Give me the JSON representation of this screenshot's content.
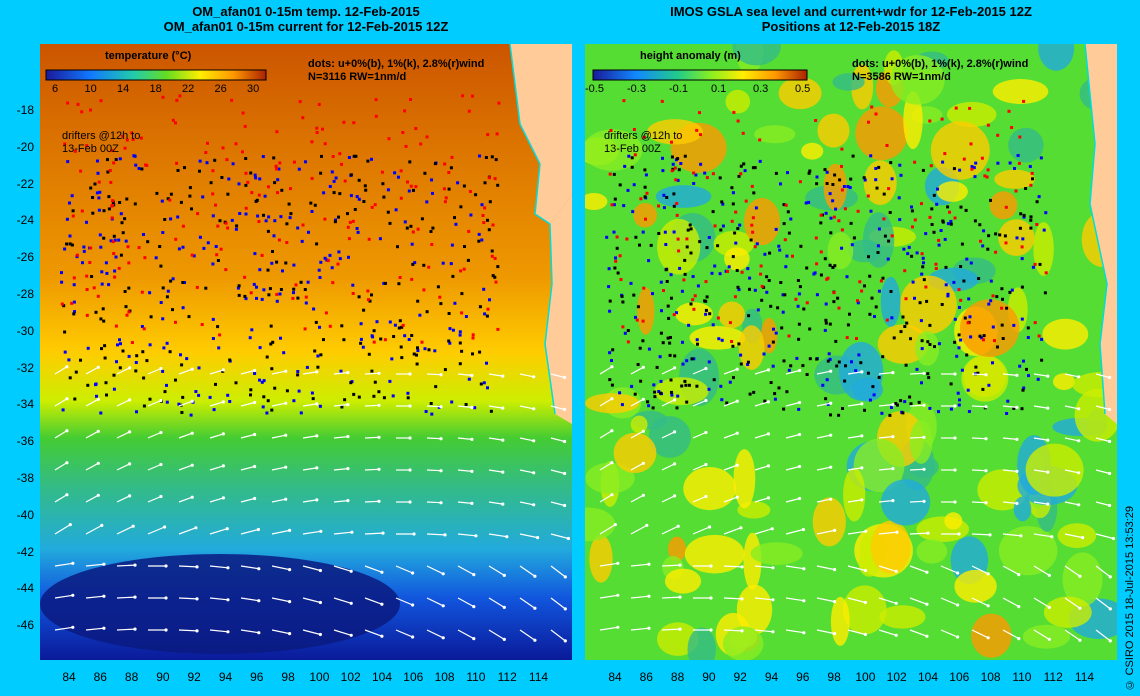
{
  "left_panel": {
    "title_line1": "OM_afan01 0-15m temp. 12-Feb-2015",
    "title_line2": "OM_afan01 0-15m current for 12-Feb-2015 12Z",
    "colorbar_title": "temperature (°C)",
    "colorbar_ticks": [
      "6",
      "10",
      "14",
      "18",
      "22",
      "26",
      "30"
    ],
    "dots_line1": "dots: u+0%(b), 1%(k), 2.8%(r)wind",
    "dots_line2": "N=3116 RW=1nm/d",
    "drifters_line1": "drifters @12h to",
    "drifters_line2": "13-Feb 00Z"
  },
  "right_panel": {
    "title_line1": "IMOS GSLA sea level and current+wdr for 12-Feb-2015 12Z",
    "title_line2": "Positions at 12-Feb-2015 18Z",
    "colorbar_title": "height anomaly (m)",
    "colorbar_ticks": [
      "-0.5",
      "-0.3",
      "-0.1",
      "0.1",
      "0.3",
      "0.5"
    ],
    "dots_line1": "dots: u+0%(b), 1%(k), 2.8%(r)wind",
    "dots_line2": "N=3586 RW=1nm/d",
    "drifters_line1": "drifters @12h to",
    "drifters_line2": "13-Feb 00Z"
  },
  "lat_ticks": [
    "-18",
    "-20",
    "-22",
    "-24",
    "-26",
    "-28",
    "-30",
    "-32",
    "-34",
    "-36",
    "-38",
    "-40",
    "-42",
    "-44",
    "-46"
  ],
  "lon_ticks": [
    "84",
    "86",
    "88",
    "90",
    "92",
    "94",
    "96",
    "98",
    "100",
    "102",
    "104",
    "106",
    "108",
    "110",
    "112",
    "114"
  ],
  "credit": "© CSIRO 2015    18-Jul-2015 13:53:29",
  "colors": {
    "background": "#00ccff",
    "land": "#ffcc99",
    "dot_b": "#0000ff",
    "dot_k": "#000000",
    "dot_r": "#ff0000",
    "arrows": "#ffffff"
  }
}
